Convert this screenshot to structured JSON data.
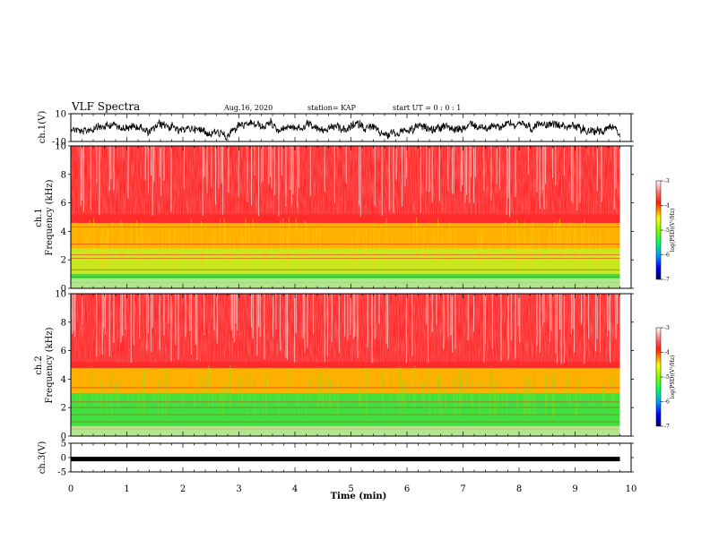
{
  "header": {
    "title": "VLF Spectra",
    "date": "Aug.16, 2020",
    "station": "station= KAP",
    "start": "start  UT =   0 : 0  : 1"
  },
  "chart_data": [
    {
      "type": "line",
      "name": "ch1-waveform",
      "ylabel": "ch.1(V)",
      "ylim": [
        -10,
        10
      ],
      "yticks": [
        "10",
        "-10"
      ],
      "xlim": [
        0,
        10
      ]
    },
    {
      "type": "heatmap",
      "name": "ch1-spectrogram",
      "ylabel_line1": "ch.1",
      "ylabel_line2": "Frequency (kHz)",
      "ylim": [
        0,
        10
      ],
      "yticks": [
        "0",
        "2",
        "4",
        "6",
        "8",
        "10"
      ],
      "xlim": [
        0,
        9.8
      ],
      "colorbar": {
        "label": "log(PSD)(V²/Hz)",
        "range": [
          -7,
          -3
        ],
        "ticks": [
          "-3",
          "-4",
          "-5",
          "-6",
          "-7"
        ],
        "colors": [
          "#000080",
          "#0000ff",
          "#00c0ff",
          "#00ff80",
          "#40ff00",
          "#c0ff00",
          "#ffff00",
          "#ffa000",
          "#ff4000",
          "#ff0000",
          "#ff9090",
          "#ffffff"
        ]
      },
      "bands": [
        {
          "f": [
            0.0,
            1.0
          ],
          "level": "green"
        },
        {
          "f": [
            1.0,
            2.8
          ],
          "level": "yellow-green"
        },
        {
          "f": [
            2.8,
            4.6
          ],
          "level": "yellow-orange"
        },
        {
          "f": [
            4.6,
            10.0
          ],
          "level": "red-white"
        }
      ]
    },
    {
      "type": "heatmap",
      "name": "ch2-spectrogram",
      "ylabel_line1": "ch.2",
      "ylabel_line2": "Frequency (kHz)",
      "ylim": [
        0,
        10
      ],
      "yticks": [
        "0",
        "2",
        "4",
        "6",
        "8",
        "10"
      ],
      "xlim": [
        0,
        9.8
      ],
      "colorbar": {
        "label": "log(PSD)(V²/Hz)",
        "range": [
          -7,
          -3
        ],
        "ticks": [
          "-3",
          "-4",
          "-5",
          "-6",
          "-7"
        ]
      },
      "bands": [
        {
          "f": [
            0.0,
            3.0
          ],
          "level": "green"
        },
        {
          "f": [
            3.0,
            4.8
          ],
          "level": "yellow-orange"
        },
        {
          "f": [
            4.8,
            10.0
          ],
          "level": "red-white"
        }
      ]
    },
    {
      "type": "line",
      "name": "ch3-waveform",
      "ylabel": "ch.3(V)",
      "ylim": [
        -5,
        5
      ],
      "yticks": [
        "5",
        "0",
        "-5"
      ],
      "xlim": [
        0,
        10
      ],
      "xlabel": "Time (min)",
      "xticks": [
        "0",
        "1",
        "2",
        "3",
        "4",
        "5",
        "6",
        "7",
        "8",
        "9",
        "10"
      ]
    }
  ]
}
